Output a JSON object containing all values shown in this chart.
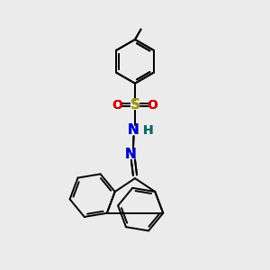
{
  "background_color": "#ebebeb",
  "bond_color": "#000000",
  "S_color": "#999900",
  "N_color": "#0000cc",
  "O_color": "#cc0000",
  "H_color": "#006666",
  "figsize": [
    3.0,
    3.0
  ],
  "dpi": 100,
  "xlim": [
    0,
    10
  ],
  "ylim": [
    0,
    10
  ]
}
